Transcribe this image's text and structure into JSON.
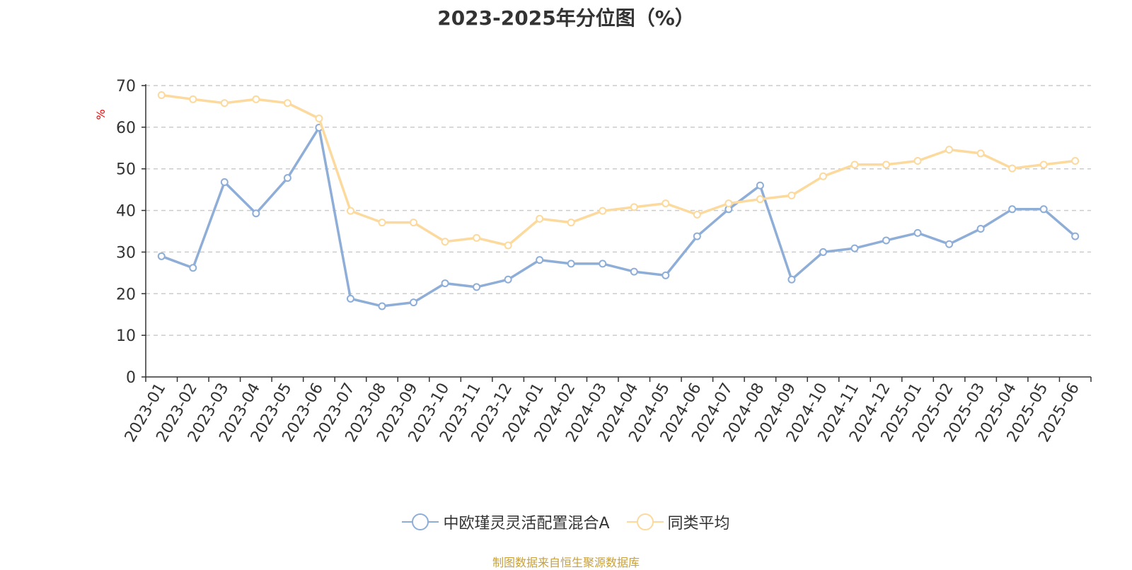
{
  "title": "2023-2025年分位图（%）",
  "footer": "制图数据来自恒生聚源数据库",
  "chart_data": {
    "type": "line",
    "title": "2023-2025年分位图（%）",
    "ylabel": "%",
    "xlabel": "",
    "ylim": [
      0,
      70
    ],
    "yticks": [
      0,
      10,
      20,
      30,
      40,
      50,
      60,
      70
    ],
    "grid": true,
    "legend_position": "bottom-center",
    "categories": [
      "2023-01",
      "2023-02",
      "2023-03",
      "2023-04",
      "2023-05",
      "2023-06",
      "2023-07",
      "2023-08",
      "2023-09",
      "2023-10",
      "2023-11",
      "2023-12",
      "2024-01",
      "2024-02",
      "2024-03",
      "2024-04",
      "2024-05",
      "2024-06",
      "2024-07",
      "2024-08",
      "2024-09",
      "2024-10",
      "2024-11",
      "2024-12",
      "2025-01",
      "2025-02",
      "2025-03",
      "2025-04",
      "2025-05",
      "2025-06"
    ],
    "series": [
      {
        "name": "中欧瑾灵灵活配置混合A",
        "color": "#8eaed8",
        "values": [
          29.0,
          26.2,
          46.8,
          39.3,
          47.8,
          59.9,
          18.8,
          17.0,
          17.9,
          22.5,
          21.6,
          23.4,
          28.1,
          27.2,
          27.2,
          25.3,
          24.4,
          33.8,
          40.3,
          46.0,
          23.4,
          30.0,
          30.9,
          32.8,
          34.6,
          31.9,
          35.6,
          40.3,
          40.3,
          33.8
        ]
      },
      {
        "name": "同类平均",
        "color": "#fcd99c",
        "values": [
          67.7,
          66.7,
          65.8,
          66.7,
          65.8,
          62.1,
          39.9,
          37.1,
          37.1,
          32.5,
          33.4,
          31.6,
          38.0,
          37.1,
          39.9,
          40.8,
          41.7,
          39.0,
          41.7,
          42.7,
          43.6,
          48.2,
          51.0,
          51.0,
          51.9,
          54.6,
          53.7,
          50.1,
          51.0,
          51.9
        ]
      }
    ]
  }
}
